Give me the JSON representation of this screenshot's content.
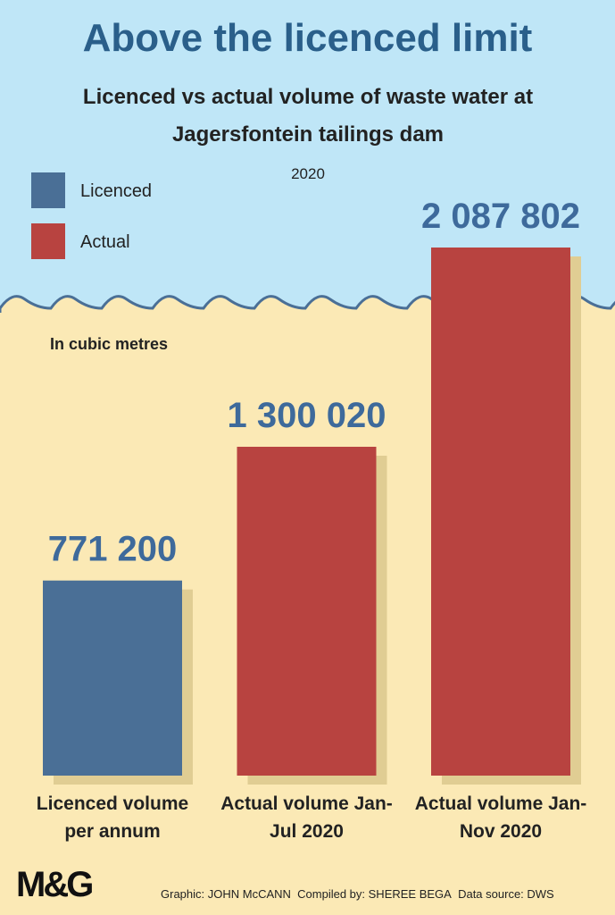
{
  "chart_data": {
    "type": "bar",
    "title": "Above the licenced limit",
    "subtitle": "Licenced vs actual volume of waste water at Jagersfontein tailings dam",
    "period": "2020",
    "unit_label": "In cubic metres",
    "categories": [
      "Licenced volume per annum",
      "Actual volume Jan-Jul 2020",
      "Actual volume Jan-Nov 2020"
    ],
    "series": [
      {
        "name": "Licenced",
        "color": "#4a6f96",
        "values": [
          771200,
          null,
          null
        ],
        "value_labels": [
          "771 200",
          null,
          null
        ]
      },
      {
        "name": "Actual",
        "color": "#b84340",
        "values": [
          null,
          1300020,
          2087802
        ],
        "value_labels": [
          null,
          "1 300 020",
          "2 087 802"
        ]
      }
    ],
    "logo": "M&G",
    "credits": [
      "Graphic: JOHN McCANN",
      "Compiled by: SHEREE BEGA",
      "Data source: DWS"
    ]
  }
}
